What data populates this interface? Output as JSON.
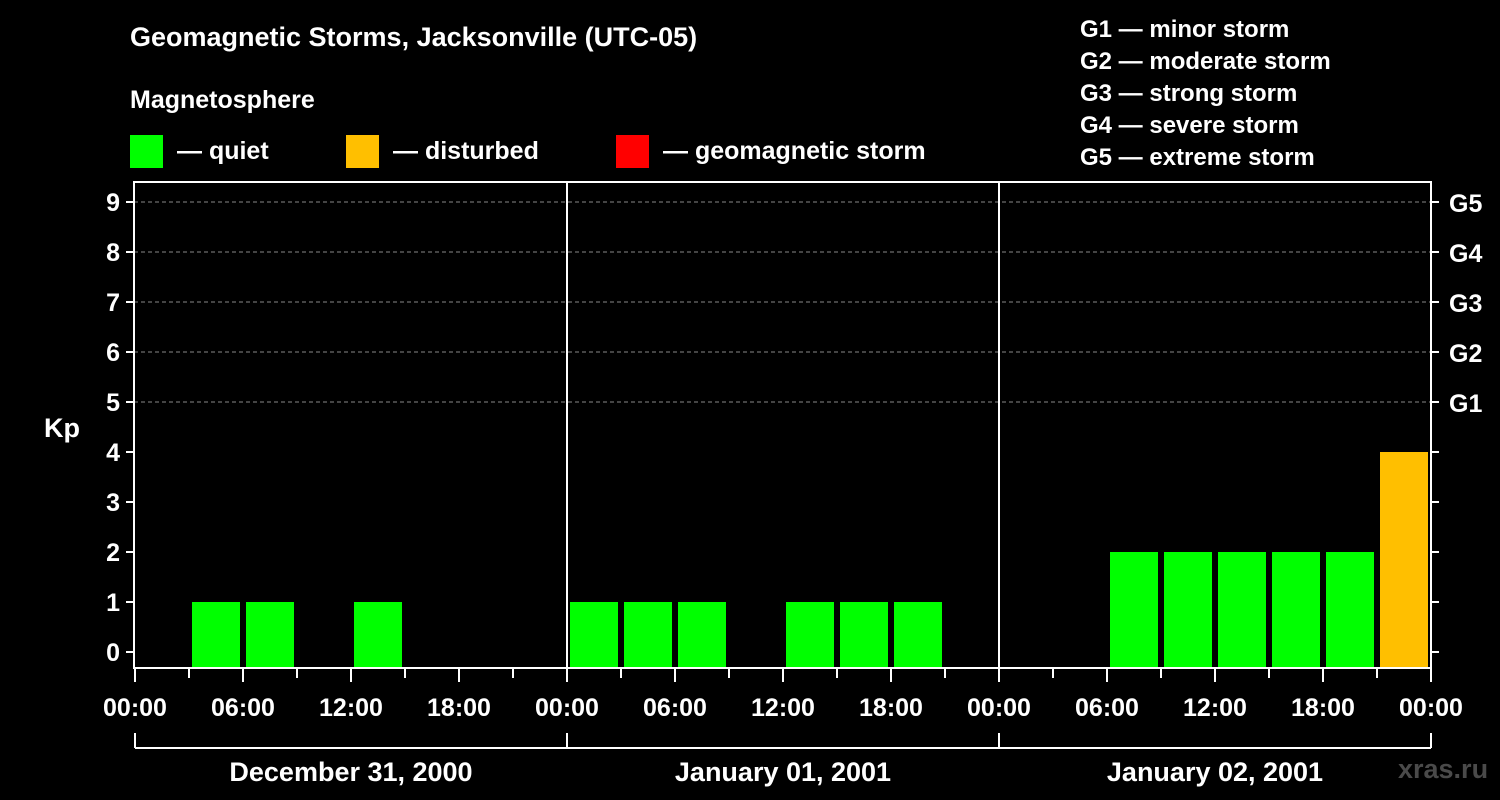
{
  "title": "Geomagnetic Storms, Jacksonville (UTC-05)",
  "subtitle": "Magnetosphere",
  "legend": [
    {
      "label": "— quiet",
      "color": "#00ff00"
    },
    {
      "label": "— disturbed",
      "color": "#ffbf00"
    },
    {
      "label": "— geomagnetic storm",
      "color": "#ff0000"
    }
  ],
  "storm_levels": [
    "G1 — minor storm",
    "G2 — moderate storm",
    "G3 — strong storm",
    "G4 — severe storm",
    "G5 — extreme storm"
  ],
  "watermark": "xras.ru",
  "chart_data": {
    "type": "bar",
    "ylabel": "Kp",
    "ylim": [
      0,
      9
    ],
    "yticks": [
      "0",
      "1",
      "2",
      "3",
      "4",
      "5",
      "6",
      "7",
      "8",
      "9"
    ],
    "right_ticks": [
      {
        "kp": 5,
        "label": "G1"
      },
      {
        "kp": 6,
        "label": "G2"
      },
      {
        "kp": 7,
        "label": "G3"
      },
      {
        "kp": 8,
        "label": "G4"
      },
      {
        "kp": 9,
        "label": "G5"
      }
    ],
    "xtick_labels": [
      "00:00",
      "06:00",
      "12:00",
      "18:00",
      "00:00",
      "06:00",
      "12:00",
      "18:00",
      "00:00",
      "06:00",
      "12:00",
      "18:00",
      "00:00"
    ],
    "days": [
      "December 31, 2000",
      "January 01, 2001",
      "January 02, 2001"
    ],
    "interval_hours": 3,
    "series": [
      {
        "values": [
          0,
          1,
          1,
          0,
          1,
          0,
          0,
          0,
          1,
          1,
          1,
          0,
          1,
          1,
          1,
          0,
          0,
          0,
          2,
          2,
          2,
          2,
          2,
          4
        ]
      }
    ],
    "grid": "horizontal dashed at Kp 5–9",
    "colors": {
      "quiet": "#00ff00",
      "disturbed": "#ffbf00",
      "storm": "#ff0000"
    }
  }
}
